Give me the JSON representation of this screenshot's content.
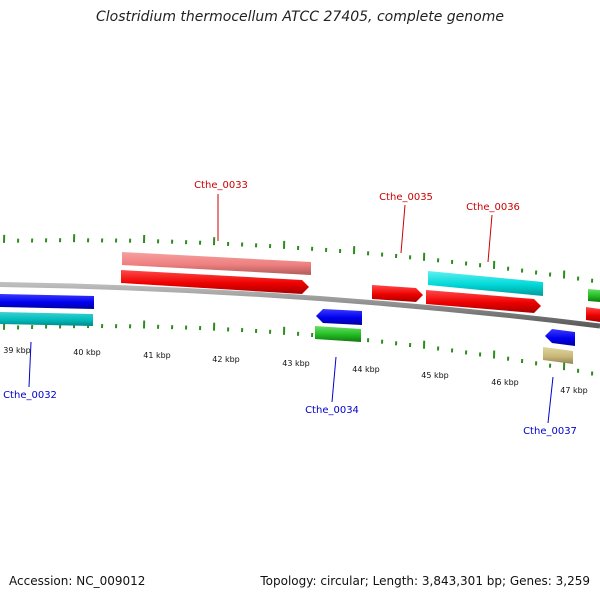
{
  "title": "Clostridium thermocellum ATCC 27405, complete genome",
  "footer": {
    "accession": "Accession: NC_009012",
    "summary": "Topology: circular; Length: 3,843,301 bp; Genes: 3,259"
  },
  "colors": {
    "backbone": "#8c8c8c",
    "tick": "#2e8b1e",
    "label_top": "#cc0000",
    "label_bottom": "#0000cc"
  },
  "ticks": [
    {
      "text": "39 kbp"
    },
    {
      "text": "40 kbp"
    },
    {
      "text": "41 kbp"
    },
    {
      "text": "42 kbp"
    },
    {
      "text": "43 kbp"
    },
    {
      "text": "44 kbp"
    },
    {
      "text": "45 kbp"
    },
    {
      "text": "46 kbp"
    },
    {
      "text": "47 kbp"
    }
  ],
  "genes": [
    {
      "name": "Cthe_0032",
      "strand": "-",
      "color": "#0000ee"
    },
    {
      "name": "Cthe_0033",
      "strand": "+",
      "color": "#ee0000"
    },
    {
      "name": "Cthe_0034",
      "strand": "-",
      "color": "#0000ee"
    },
    {
      "name": "Cthe_0035",
      "strand": "+",
      "color": "#ee0000"
    },
    {
      "name": "Cthe_0036",
      "strand": "+",
      "color": "#ee0000"
    },
    {
      "name": "Cthe_0037",
      "strand": "-",
      "color": "#0000ee"
    }
  ],
  "features": [
    {
      "kind": "rRNA-like",
      "color": "#00cccc"
    },
    {
      "kind": "pseudo",
      "color": "#f08080"
    },
    {
      "kind": "misc",
      "color": "#22bb22"
    },
    {
      "kind": "other",
      "color": "#c8b878"
    }
  ]
}
